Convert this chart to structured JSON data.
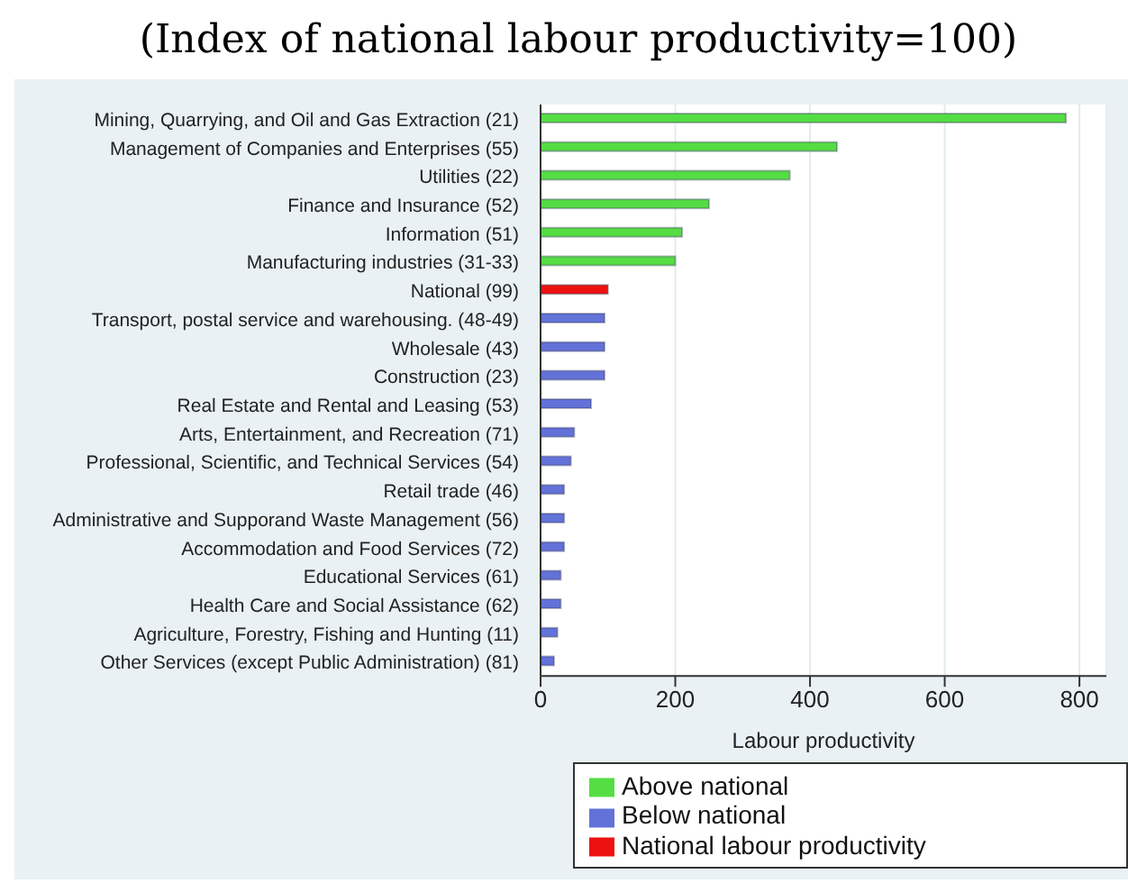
{
  "chart_data": {
    "type": "bar",
    "orientation": "horizontal",
    "stacked": true,
    "title": "(Index of national labour productivity=100)",
    "xlabel": "Labour productivity",
    "categories": [
      "Mining, Quarrying, and Oil and Gas Extraction (21)",
      "Management of Companies and Enterprises (55)",
      "Utilities (22)",
      "Finance and Insurance (52)",
      "Information (51)",
      "Manufacturing industries (31-33)",
      "National (99)",
      "Transport, postal service and warehousing. (48-49)",
      "Wholesale (43)",
      "Construction (23)",
      "Real Estate and Rental and Leasing (53)",
      "Arts, Entertainment, and Recreation (71)",
      "Professional, Scientific, and Technical Services (54)",
      "Retail trade (46)",
      "Administrative and Supporand Waste Management (56)",
      "Accommodation and Food Services (72)",
      "Educational Services (61)",
      "Health Care and Social Assistance (62)",
      "Agriculture, Forestry, Fishing and Hunting (11)",
      "Other Services (except Public Administration) (81)"
    ],
    "series": [
      {
        "name": "Below national",
        "color": "#6272d9",
        "values": [
          null,
          null,
          null,
          null,
          null,
          null,
          null,
          95,
          95,
          95,
          75,
          50,
          45,
          35,
          35,
          35,
          30,
          30,
          25,
          20
        ]
      },
      {
        "name": "National labour productivity",
        "color": "#ee1111",
        "values": [
          null,
          null,
          null,
          null,
          null,
          null,
          100,
          null,
          null,
          null,
          null,
          null,
          null,
          null,
          null,
          null,
          null,
          null,
          null,
          null
        ]
      },
      {
        "name": "Above national",
        "color": "#55dd44",
        "values": [
          780,
          440,
          370,
          250,
          210,
          200,
          null,
          null,
          null,
          null,
          null,
          null,
          null,
          null,
          null,
          null,
          null,
          null,
          null,
          null
        ]
      }
    ],
    "xlim": [
      0,
      840
    ],
    "xticks": [
      0,
      200,
      400,
      600,
      800
    ],
    "grid": "x",
    "legend": "bottom"
  }
}
